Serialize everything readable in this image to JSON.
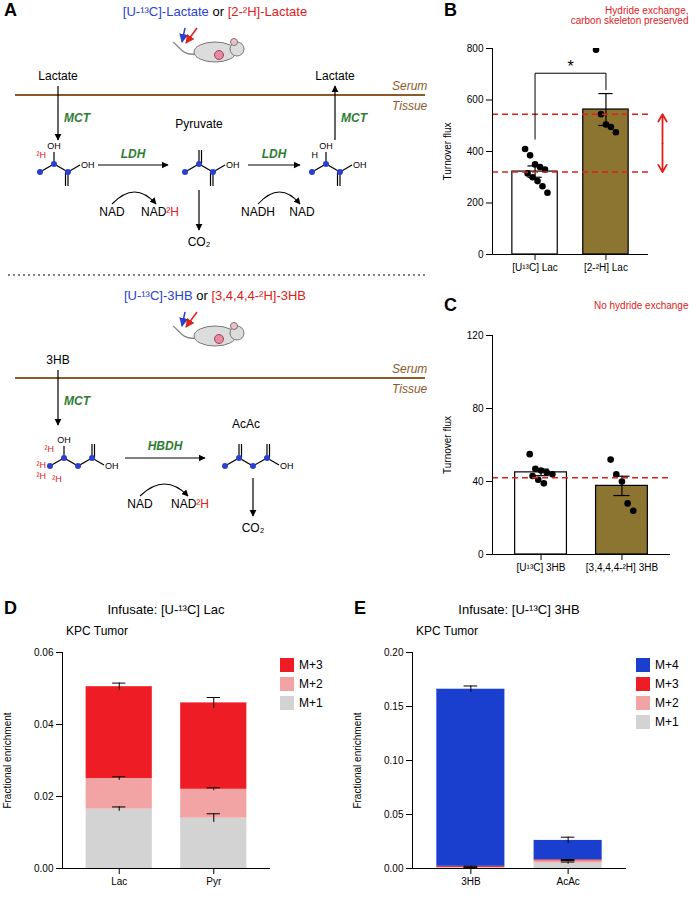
{
  "chart_data": [
    {
      "panel": "B",
      "type": "bar",
      "categories": [
        "[U¹³C] Lac",
        "[2-²H] Lac"
      ],
      "values": [
        322,
        563
      ],
      "errors": [
        22,
        62
      ],
      "points": [
        [
          410,
          385,
          350,
          340,
          330,
          315,
          300,
          285,
          265,
          240
        ],
        [
          795,
          545,
          505,
          495,
          475
        ]
      ],
      "colors": [
        "#ffffff",
        "#8c7431"
      ],
      "y_label": "Turnover flux",
      "ylim": [
        0,
        800
      ],
      "yticks": [
        0,
        200,
        400,
        600,
        800
      ],
      "significance": "*",
      "reference_lines": [
        320,
        545
      ],
      "annotations": [
        {
          "text": "Hydride exchange,\ncarbon skeleton preserved",
          "color": "#e0201b"
        }
      ]
    },
    {
      "panel": "C",
      "type": "bar",
      "categories": [
        "[U¹³C] 3HB",
        "[3,4,4,4-²H] 3HB"
      ],
      "values": [
        45,
        37.6
      ],
      "errors": [
        1.8,
        5.3
      ],
      "points": [
        [
          55,
          47,
          46,
          45,
          44,
          43,
          41,
          39
        ],
        [
          52,
          44,
          40,
          28,
          24
        ]
      ],
      "colors": [
        "#ffffff",
        "#8c7431"
      ],
      "y_label": "Turnover flux",
      "ylim": [
        0,
        120
      ],
      "yticks": [
        0,
        40,
        80,
        120
      ],
      "reference_lines": [
        42
      ],
      "annotations": [
        {
          "text": "No hydride exchange",
          "color": "#e0201b"
        }
      ]
    },
    {
      "panel": "D",
      "type": "bar",
      "stacked": true,
      "title": "Infusate: [U-¹³C] Lac",
      "subtitle": "KPC Tumor",
      "categories": [
        "Lac",
        "Pyr"
      ],
      "series": [
        {
          "name": "M+1",
          "color": "#d3d3d3",
          "values": [
            0.0165,
            0.014
          ],
          "errors": [
            0.0006,
            0.0012
          ]
        },
        {
          "name": "M+2",
          "color": "#f2a3a3",
          "values": [
            0.0085,
            0.008
          ],
          "errors": [
            0.0005,
            0.0004
          ]
        },
        {
          "name": "M+3",
          "color": "#ee1c25",
          "values": [
            0.0255,
            0.024
          ],
          "errors": [
            0.001,
            0.0015
          ]
        }
      ],
      "y_label": "Fractional enrichment",
      "ylim": [
        0,
        0.06
      ],
      "yticks": [
        {
          "value": 0,
          "label": "0.00"
        },
        {
          "value": 0.02,
          "label": "0.02"
        },
        {
          "value": 0.04,
          "label": "0.04"
        },
        {
          "value": 0.06,
          "label": "0.06"
        }
      ],
      "legend": "right"
    },
    {
      "panel": "E",
      "type": "bar",
      "stacked": true,
      "title": "Infusate: [U-¹³C] 3HB",
      "subtitle": "KPC Tumor",
      "categories": [
        "3HB",
        "AcAc"
      ],
      "series": [
        {
          "name": "M+1",
          "color": "#d3d3d3",
          "values": [
            0.0005,
            0.005
          ],
          "errors": [
            0.0001,
            0.001
          ]
        },
        {
          "name": "M+2",
          "color": "#f2a3a3",
          "values": [
            0.0005,
            0.002
          ],
          "errors": [
            0.0001,
            0.0005
          ]
        },
        {
          "name": "M+3",
          "color": "#ee1c25",
          "values": [
            0.001,
            0.001
          ],
          "errors": [
            0.0002,
            0.0003
          ]
        },
        {
          "name": "M+4",
          "color": "#1a3fcf",
          "values": [
            0.164,
            0.018
          ],
          "errors": [
            0.003,
            0.003
          ]
        }
      ],
      "y_label": "Fractional enrichment",
      "ylim": [
        0,
        0.2
      ],
      "yticks": [
        {
          "value": 0,
          "label": "0.00"
        },
        {
          "value": 0.05,
          "label": "0.05"
        },
        {
          "value": 0.1,
          "label": "0.10"
        },
        {
          "value": 0.15,
          "label": "0.15"
        },
        {
          "value": 0.2,
          "label": "0.20"
        }
      ],
      "legend": "right"
    }
  ],
  "diagram": {
    "panel": "A",
    "colors": {
      "carbon": "#2b3fd0",
      "label": "#e0201b",
      "enzyme": "#2e7d32",
      "serum": "#8b5a2b"
    },
    "lactate_section": {
      "tracers": [
        {
          "text": "[U-¹³C]-Lactate",
          "color": "#2b3fd0"
        },
        {
          "text": "or",
          "color": "#000000"
        },
        {
          "text": "[2-²H]-Lactate",
          "color": "#e0201b"
        }
      ],
      "serum_metabolite": "Lactate",
      "released_metabolite": "Lactate",
      "serum": "Serum",
      "tissue": "Tissue",
      "transporter": "MCT",
      "enzyme": "LDH",
      "intermediate": "Pyruvate",
      "product": "CO₂",
      "forward_cofactors": [
        "NAD",
        "NAD²H"
      ],
      "reverse_cofactors": [
        "NADH",
        "NAD"
      ],
      "labeled_hydrogen": "²H",
      "hydrogen": "H",
      "hydroxyl": "OH"
    },
    "hb_section": {
      "tracers": [
        {
          "text": "[U-¹³C]-3HB",
          "color": "#2b3fd0"
        },
        {
          "text": "or",
          "color": "#000000"
        },
        {
          "text": "[3,4,4,4-²H]-3HB",
          "color": "#e0201b"
        }
      ],
      "serum_metabolite": "3HB",
      "serum": "Serum",
      "tissue": "Tissue",
      "transporter": "MCT",
      "enzyme": "HBDH",
      "product_metabolite": "AcAc",
      "product": "CO₂",
      "forward_cofactors": [
        "NAD",
        "NAD²H"
      ],
      "labeled_hydrogen": "²H",
      "hydroxyl": "OH"
    }
  }
}
